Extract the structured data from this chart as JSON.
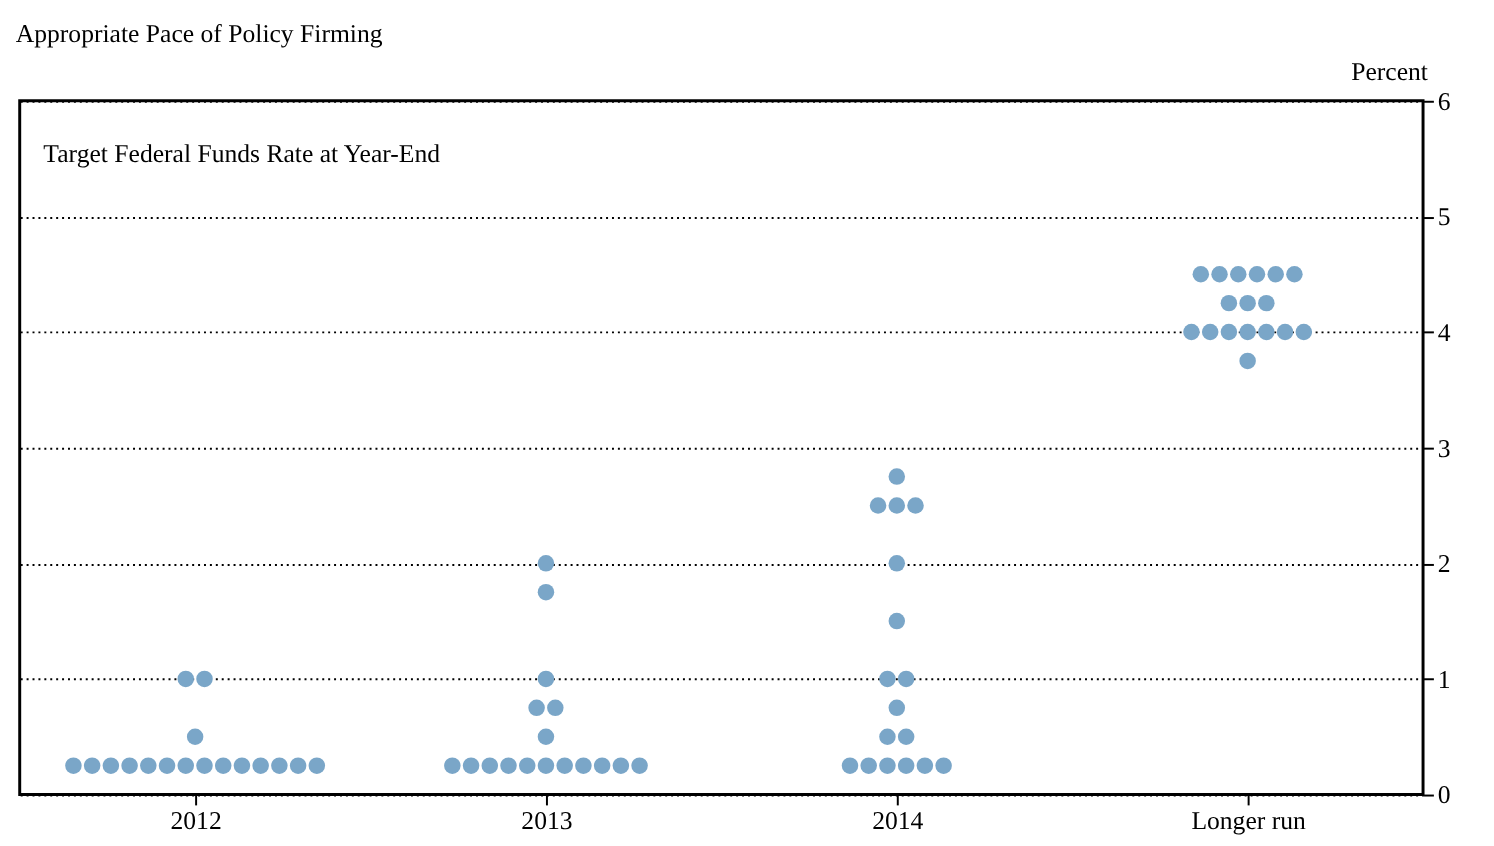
{
  "chart_data": {
    "type": "scatter",
    "title": "Appropriate Pace of Policy Firming",
    "subtitle": "Target Federal Funds Rate at Year-End",
    "ylabel": "Percent",
    "categories": [
      "2012",
      "2013",
      "2014",
      "Longer run"
    ],
    "series": [
      {
        "color": "#7aa6c8",
        "values": [
          0.25,
          0.25,
          0.25,
          3.75
        ]
      },
      {
        "color": "#7aa6c8",
        "values": [
          0.25,
          0.25,
          0.25,
          4.0
        ]
      },
      {
        "color": "#7aa6c8",
        "values": [
          0.25,
          0.25,
          0.25,
          4.0
        ]
      },
      {
        "color": "#7aa6c8",
        "values": [
          0.25,
          0.25,
          0.25,
          4.0
        ]
      },
      {
        "color": "#7aa6c8",
        "values": [
          0.25,
          0.25,
          0.25,
          4.0
        ]
      },
      {
        "color": "#7aa6c8",
        "values": [
          0.25,
          0.25,
          0.25,
          4.0
        ]
      },
      {
        "color": "#7aa6c8",
        "values": [
          0.25,
          0.25,
          0.5,
          4.0
        ]
      },
      {
        "color": "#7aa6c8",
        "values": [
          0.25,
          0.25,
          0.5,
          4.0
        ]
      },
      {
        "color": "#7aa6c8",
        "values": [
          0.25,
          0.25,
          0.75,
          4.25
        ]
      },
      {
        "color": "#7aa6c8",
        "values": [
          0.25,
          0.25,
          1.0,
          4.25
        ]
      },
      {
        "color": "#7aa6c8",
        "values": [
          0.25,
          0.25,
          1.0,
          4.25
        ]
      },
      {
        "color": "#7aa6c8",
        "values": [
          0.25,
          0.5,
          1.5,
          4.5
        ]
      },
      {
        "color": "#7aa6c8",
        "values": [
          0.25,
          0.75,
          2.0,
          4.5
        ]
      },
      {
        "color": "#7aa6c8",
        "values": [
          0.25,
          0.75,
          2.5,
          4.5
        ]
      },
      {
        "color": "#7aa6c8",
        "values": [
          0.5,
          1.0,
          2.5,
          4.5
        ]
      },
      {
        "color": "#7aa6c8",
        "values": [
          1.0,
          1.75,
          2.5,
          4.5
        ]
      },
      {
        "color": "#7aa6c8",
        "values": [
          1.0,
          2.0,
          2.75,
          4.5
        ]
      }
    ],
    "ylim": [
      0,
      6
    ],
    "yticks": [
      0,
      1,
      2,
      3,
      4,
      5,
      6
    ],
    "grid": "y",
    "marker": "circle"
  }
}
